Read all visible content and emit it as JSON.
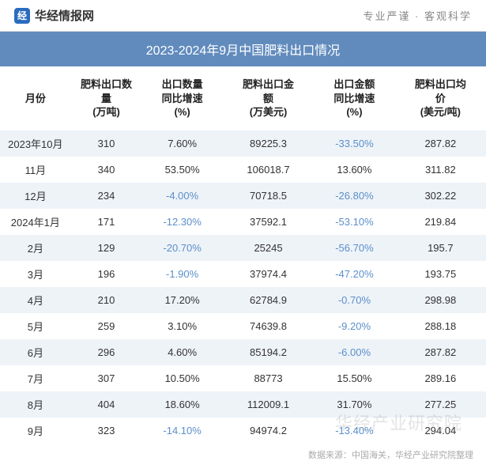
{
  "topbar": {
    "brand_icon": "经",
    "brand_text": "华经情报网",
    "tagline": "专业严谨 · 客观科学"
  },
  "title": "2023-2024年9月中国肥料出口情况",
  "columns": [
    "月份",
    "肥料出口数\n量\n(万吨)",
    "出口数量\n同比增速\n(%)",
    "肥料出口金\n额\n(万美元)",
    "出口金额\n同比增速\n(%)",
    "肥料出口均\n价\n(美元/吨)"
  ],
  "rows": [
    {
      "month": "2023年10月",
      "qty": "310",
      "qty_yoy": "7.60%",
      "qty_neg": false,
      "val": "89225.3",
      "val_yoy": "-33.50%",
      "val_neg": true,
      "price": "287.82"
    },
    {
      "month": "11月",
      "qty": "340",
      "qty_yoy": "53.50%",
      "qty_neg": false,
      "val": "106018.7",
      "val_yoy": "13.60%",
      "val_neg": false,
      "price": "311.82"
    },
    {
      "month": "12月",
      "qty": "234",
      "qty_yoy": "-4.00%",
      "qty_neg": true,
      "val": "70718.5",
      "val_yoy": "-26.80%",
      "val_neg": true,
      "price": "302.22"
    },
    {
      "month": "2024年1月",
      "qty": "171",
      "qty_yoy": "-12.30%",
      "qty_neg": true,
      "val": "37592.1",
      "val_yoy": "-53.10%",
      "val_neg": true,
      "price": "219.84"
    },
    {
      "month": "2月",
      "qty": "129",
      "qty_yoy": "-20.70%",
      "qty_neg": true,
      "val": "25245",
      "val_yoy": "-56.70%",
      "val_neg": true,
      "price": "195.7"
    },
    {
      "month": "3月",
      "qty": "196",
      "qty_yoy": "-1.90%",
      "qty_neg": true,
      "val": "37974.4",
      "val_yoy": "-47.20%",
      "val_neg": true,
      "price": "193.75"
    },
    {
      "month": "4月",
      "qty": "210",
      "qty_yoy": "17.20%",
      "qty_neg": false,
      "val": "62784.9",
      "val_yoy": "-0.70%",
      "val_neg": true,
      "price": "298.98"
    },
    {
      "month": "5月",
      "qty": "259",
      "qty_yoy": "3.10%",
      "qty_neg": false,
      "val": "74639.8",
      "val_yoy": "-9.20%",
      "val_neg": true,
      "price": "288.18"
    },
    {
      "month": "6月",
      "qty": "296",
      "qty_yoy": "4.60%",
      "qty_neg": false,
      "val": "85194.2",
      "val_yoy": "-6.00%",
      "val_neg": true,
      "price": "287.82"
    },
    {
      "month": "7月",
      "qty": "307",
      "qty_yoy": "10.50%",
      "qty_neg": false,
      "val": "88773",
      "val_yoy": "15.50%",
      "val_neg": false,
      "price": "289.16"
    },
    {
      "month": "8月",
      "qty": "404",
      "qty_yoy": "18.60%",
      "qty_neg": false,
      "val": "112009.1",
      "val_yoy": "31.70%",
      "val_neg": false,
      "price": "277.25"
    },
    {
      "month": "9月",
      "qty": "323",
      "qty_yoy": "-14.10%",
      "qty_neg": true,
      "val": "94974.2",
      "val_yoy": "-13.40%",
      "val_neg": true,
      "price": "294.04"
    }
  ],
  "footer": "数据来源：中国海关，华经产业研究院整理",
  "watermark": "华经产业研究院",
  "styling": {
    "type": "table",
    "title_band_bg": "#618bbd",
    "title_color": "#ffffff",
    "row_alt_bg": "#eef3f8",
    "row_bg": "#ffffff",
    "text_color": "#333333",
    "negative_color": "#5b8fc9",
    "header_fontsize": 13,
    "cell_fontsize": 13,
    "title_fontsize": 16,
    "column_widths_pct": [
      14,
      14,
      16,
      18,
      16,
      18
    ]
  }
}
